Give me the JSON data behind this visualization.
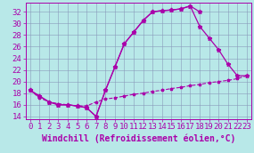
{
  "xlabel": "Windchill (Refroidissement éolien,°C)",
  "bg_color": "#b8e8e8",
  "line_color": "#aa00aa",
  "grid_color": "#8899bb",
  "xlim": [
    -0.5,
    23.5
  ],
  "ylim": [
    13.5,
    33.5
  ],
  "xticks": [
    0,
    1,
    2,
    3,
    4,
    5,
    6,
    7,
    8,
    9,
    10,
    11,
    12,
    13,
    14,
    15,
    16,
    17,
    18,
    19,
    20,
    21,
    22,
    23
  ],
  "yticks": [
    14,
    16,
    18,
    20,
    22,
    24,
    26,
    28,
    30,
    32
  ],
  "line1_x": [
    0,
    1,
    2,
    3,
    4,
    5,
    6,
    7,
    8,
    9,
    10,
    11,
    12,
    13,
    14,
    15,
    16,
    17,
    18
  ],
  "line1_y": [
    18.5,
    17.5,
    16.5,
    16.0,
    16.0,
    15.8,
    15.5,
    14.0,
    18.5,
    22.5,
    26.5,
    28.5,
    30.5,
    32.0,
    32.2,
    32.3,
    32.5,
    33.0,
    32.0
  ],
  "line2_x": [
    0,
    1,
    2,
    3,
    4,
    5,
    6,
    7,
    8,
    9,
    10,
    11,
    12,
    13,
    14,
    15,
    16,
    17,
    18,
    19,
    20,
    21,
    22,
    23
  ],
  "line2_y": [
    18.5,
    17.5,
    16.5,
    16.0,
    16.0,
    15.8,
    15.5,
    14.0,
    18.5,
    22.5,
    26.5,
    28.5,
    30.5,
    32.0,
    32.2,
    32.3,
    32.5,
    33.0,
    29.5,
    27.5,
    25.5,
    23.0,
    21.0,
    21.0
  ],
  "line3_x": [
    0,
    1,
    2,
    3,
    4,
    5,
    6,
    7,
    8,
    9,
    10,
    11,
    12,
    13,
    14,
    15,
    16,
    17,
    18,
    19,
    20,
    21,
    22,
    23
  ],
  "line3_y": [
    18.5,
    17.2,
    16.5,
    16.2,
    16.0,
    15.8,
    15.8,
    16.5,
    17.0,
    17.2,
    17.5,
    17.8,
    18.0,
    18.3,
    18.5,
    18.8,
    19.0,
    19.3,
    19.5,
    19.8,
    20.0,
    20.2,
    20.5,
    21.0
  ],
  "font_size": 6.5,
  "xlabel_fontsize": 7
}
